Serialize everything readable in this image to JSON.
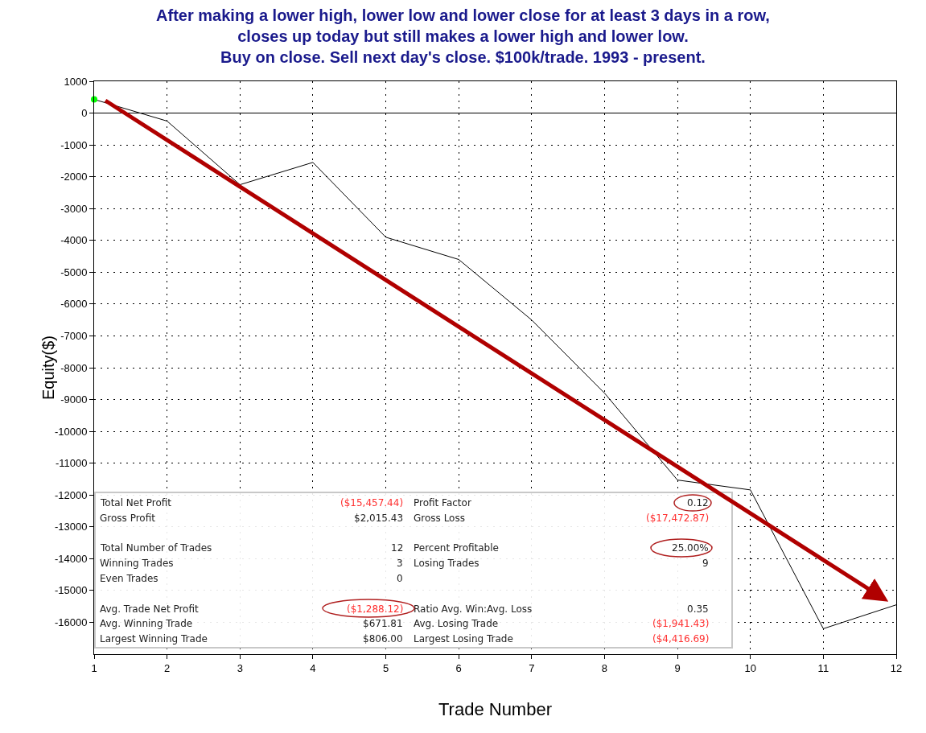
{
  "chart_data": {
    "type": "line",
    "title": "After making a lower high, lower low and lower close for at least 3 days in a row,\ncloses up today but still makes a lower high and lower low.\nBuy on close. Sell next day's close. $100k/trade. 1993 - present.",
    "xlabel": "Trade Number",
    "ylabel": "Equity($)",
    "x": [
      1,
      2,
      3,
      4,
      5,
      6,
      7,
      8,
      9,
      10,
      11,
      12
    ],
    "series": [
      {
        "color": "#000000",
        "values": [
          430,
          -250,
          -2250,
          -1550,
          -3900,
          -4600,
          -6500,
          -8800,
          -11530,
          -11840,
          -16200,
          -15450
        ]
      },
      {
        "type": "scatter",
        "color": "#00ff00",
        "x": [
          1
        ],
        "values": [
          430
        ],
        "marker": "circle"
      }
    ],
    "xlim": [
      1,
      12
    ],
    "xticks": [
      1,
      2,
      3,
      4,
      5,
      6,
      7,
      8,
      9,
      10,
      11,
      12
    ],
    "ylim": [
      -17000,
      1000
    ],
    "yticks": [
      1000,
      0,
      -1000,
      -2000,
      -3000,
      -4000,
      -5000,
      -6000,
      -7000,
      -8000,
      -9000,
      -10000,
      -11000,
      -12000,
      -13000,
      -14000,
      -15000,
      -16000
    ],
    "grid": true,
    "marker": "none",
    "line_style": "solid",
    "annotations": [
      "Total Net Profit",
      "($15,457.44)",
      "Profit Factor",
      "0.12",
      "Gross Profit",
      "$2,015.43",
      "Gross Loss",
      "($17,472.87)",
      "Total Number of Trades",
      "12",
      "Percent Profitable",
      "25.00%",
      "Winning Trades",
      "3",
      "Losing Trades",
      "9",
      "Even Trades",
      "0",
      "Avg. Trade Net Profit",
      "($1,288.12)",
      "Ratio Avg. Win:Avg. Loss",
      "0.35",
      "Avg. Winning Trade",
      "$671.81",
      "Avg. Losing Trade",
      "($1,941.43)",
      "Largest Winning Trade",
      "$806.00",
      "Largest Losing Trade",
      "($4,416.69)"
    ]
  }
}
